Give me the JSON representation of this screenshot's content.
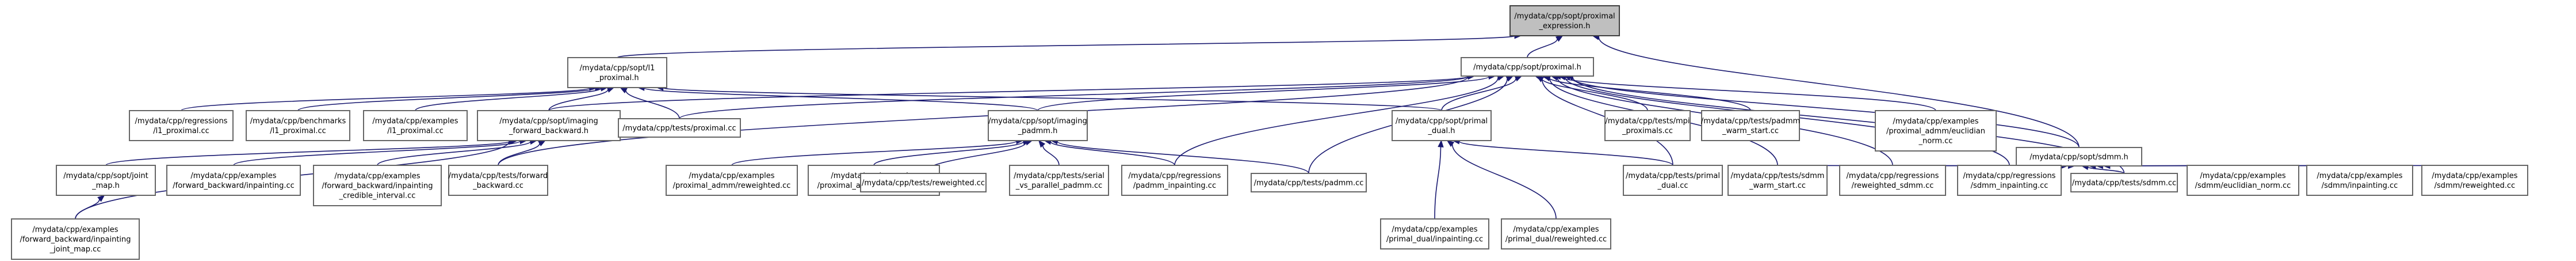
{
  "nodes": [
    {
      "id": "root",
      "lines": [
        "/mydata/cpp/sopt/proximal",
        "_expression.h"
      ],
      "root": true
    },
    {
      "id": "l1prox",
      "lines": [
        "/mydata/cpp/sopt/l1",
        "_proximal.h"
      ]
    },
    {
      "id": "prox",
      "lines": [
        "/mydata/cpp/sopt/proximal.h"
      ]
    },
    {
      "id": "sdmmh",
      "lines": [
        "/mydata/cpp/sopt/sdmm.h"
      ]
    },
    {
      "id": "reg_l1",
      "lines": [
        "/mydata/cpp/regressions",
        "/l1_proximal.cc"
      ]
    },
    {
      "id": "bench_l1",
      "lines": [
        "/mydata/cpp/benchmarks",
        "/l1_proximal.cc"
      ]
    },
    {
      "id": "ex_l1",
      "lines": [
        "/mydata/cpp/examples",
        "/l1_proximal.cc"
      ]
    },
    {
      "id": "fbh",
      "lines": [
        "/mydata/cpp/sopt/imaging",
        "_forward_backward.h"
      ]
    },
    {
      "id": "tests_prox",
      "lines": [
        "/mydata/cpp/tests/proximal.cc"
      ]
    },
    {
      "id": "padmmh",
      "lines": [
        "/mydata/cpp/sopt/imaging",
        "_padmm.h"
      ]
    },
    {
      "id": "pdh",
      "lines": [
        "/mydata/cpp/sopt/primal",
        "_dual.h"
      ]
    },
    {
      "id": "mpi_prox",
      "lines": [
        "/mydata/cpp/tests/mpi",
        "_proximals.cc"
      ]
    },
    {
      "id": "padmm_warm",
      "lines": [
        "/mydata/cpp/tests/padmm",
        "_warm_start.cc"
      ]
    },
    {
      "id": "ex_prox_admm_eucl",
      "lines": [
        "/mydata/cpp/examples",
        "/proximal_admm/euclidian",
        "_norm.cc"
      ]
    },
    {
      "id": "jmh",
      "lines": [
        "/mydata/cpp/sopt/joint",
        "_map.h"
      ]
    },
    {
      "id": "ex_fb_inp",
      "lines": [
        "/mydata/cpp/examples",
        "/forward_backward/inpainting.cc"
      ]
    },
    {
      "id": "ex_fb_cred",
      "lines": [
        "/mydata/cpp/examples",
        "/forward_backward/inpainting",
        "_credible_interval.cc"
      ]
    },
    {
      "id": "tests_fb",
      "lines": [
        "/mydata/cpp/tests/forward",
        "_backward.cc"
      ]
    },
    {
      "id": "ex_pa_rw",
      "lines": [
        "/mydata/cpp/examples",
        "/proximal_admm/reweighted.cc"
      ]
    },
    {
      "id": "ex_pa_inp",
      "lines": [
        "/mydata/cpp/examples",
        "/proximal_admm/inpainting.cc"
      ]
    },
    {
      "id": "tests_rw",
      "lines": [
        "/mydata/cpp/tests/reweighted.cc"
      ]
    },
    {
      "id": "tests_serial",
      "lines": [
        "/mydata/cpp/tests/serial",
        "_vs_parallel_padmm.cc"
      ]
    },
    {
      "id": "reg_padmm_inp",
      "lines": [
        "/mydata/cpp/regressions",
        "/padmm_inpainting.cc"
      ]
    },
    {
      "id": "tests_padmm",
      "lines": [
        "/mydata/cpp/tests/padmm.cc"
      ]
    },
    {
      "id": "ex_pd_inp",
      "lines": [
        "/mydata/cpp/examples",
        "/primal_dual/inpainting.cc"
      ]
    },
    {
      "id": "ex_pd_rw",
      "lines": [
        "/mydata/cpp/examples",
        "/primal_dual/reweighted.cc"
      ]
    },
    {
      "id": "tests_pd",
      "lines": [
        "/mydata/cpp/tests/primal",
        "_dual.cc"
      ]
    },
    {
      "id": "tests_sdmm_warm",
      "lines": [
        "/mydata/cpp/tests/sdmm",
        "_warm_start.cc"
      ]
    },
    {
      "id": "reg_rw_sdmm",
      "lines": [
        "/mydata/cpp/regressions",
        "/reweighted_sdmm.cc"
      ]
    },
    {
      "id": "reg_sdmm_inp",
      "lines": [
        "/mydata/cpp/regressions",
        "/sdmm_inpainting.cc"
      ]
    },
    {
      "id": "tests_sdmm",
      "lines": [
        "/mydata/cpp/tests/sdmm.cc"
      ]
    },
    {
      "id": "ex_sdmm_eucl",
      "lines": [
        "/mydata/cpp/examples",
        "/sdmm/euclidian_norm.cc"
      ]
    },
    {
      "id": "ex_sdmm_inp",
      "lines": [
        "/mydata/cpp/examples",
        "/sdmm/inpainting.cc"
      ]
    },
    {
      "id": "ex_sdmm_rw",
      "lines": [
        "/mydata/cpp/examples",
        "/sdmm/reweighted.cc"
      ]
    },
    {
      "id": "ex_fb_joint",
      "lines": [
        "/mydata/cpp/examples",
        "/forward_backward/inpainting",
        "_joint_map.cc"
      ]
    }
  ],
  "edges": [
    [
      "l1prox",
      "root"
    ],
    [
      "prox",
      "root"
    ],
    [
      "sdmmh",
      "root"
    ],
    [
      "reg_l1",
      "l1prox"
    ],
    [
      "bench_l1",
      "l1prox"
    ],
    [
      "ex_l1",
      "l1prox"
    ],
    [
      "fbh",
      "l1prox"
    ],
    [
      "tests_prox",
      "l1prox"
    ],
    [
      "padmmh",
      "l1prox"
    ],
    [
      "pdh",
      "l1prox"
    ],
    [
      "sdmmh",
      "prox"
    ],
    [
      "fbh",
      "prox"
    ],
    [
      "tests_prox",
      "prox"
    ],
    [
      "padmmh",
      "prox"
    ],
    [
      "pdh",
      "prox"
    ],
    [
      "mpi_prox",
      "prox"
    ],
    [
      "padmm_warm",
      "prox"
    ],
    [
      "ex_prox_admm_eucl",
      "prox"
    ],
    [
      "tests_fb",
      "prox"
    ],
    [
      "reg_padmm_inp",
      "prox"
    ],
    [
      "tests_padmm",
      "prox"
    ],
    [
      "tests_pd",
      "prox"
    ],
    [
      "tests_sdmm_warm",
      "prox"
    ],
    [
      "reg_rw_sdmm",
      "prox"
    ],
    [
      "reg_sdmm_inp",
      "prox"
    ],
    [
      "tests_sdmm",
      "prox"
    ],
    [
      "jmh",
      "fbh"
    ],
    [
      "ex_fb_inp",
      "fbh"
    ],
    [
      "ex_fb_cred",
      "fbh"
    ],
    [
      "tests_fb",
      "fbh"
    ],
    [
      "ex_fb_joint",
      "fbh"
    ],
    [
      "ex_fb_joint",
      "jmh"
    ],
    [
      "ex_pa_rw",
      "padmmh"
    ],
    [
      "ex_pa_inp",
      "padmmh"
    ],
    [
      "tests_rw",
      "padmmh"
    ],
    [
      "tests_serial",
      "padmmh"
    ],
    [
      "reg_padmm_inp",
      "padmmh"
    ],
    [
      "tests_padmm",
      "padmmh"
    ],
    [
      "ex_pd_inp",
      "pdh"
    ],
    [
      "ex_pd_rw",
      "pdh"
    ],
    [
      "tests_pd",
      "pdh"
    ],
    [
      "tests_sdmm_warm",
      "sdmmh"
    ],
    [
      "reg_rw_sdmm",
      "sdmmh"
    ],
    [
      "reg_sdmm_inp",
      "sdmmh"
    ],
    [
      "tests_sdmm",
      "sdmmh"
    ],
    [
      "ex_sdmm_eucl",
      "sdmmh"
    ],
    [
      "ex_sdmm_inp",
      "sdmmh"
    ],
    [
      "ex_sdmm_rw",
      "sdmmh"
    ]
  ]
}
